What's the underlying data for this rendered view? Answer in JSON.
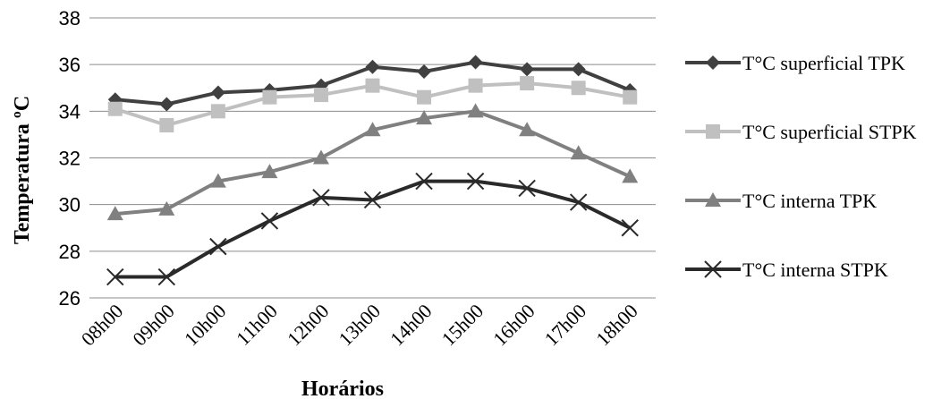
{
  "chart_data": {
    "type": "line",
    "ylabel": "Temperatura ºC",
    "xlabel": "Horários",
    "ylim": [
      26,
      38
    ],
    "yticks": [
      "26",
      "28",
      "30",
      "32",
      "34",
      "36",
      "38"
    ],
    "grid": true,
    "legend_position": "right",
    "categories": [
      "08h00",
      "09h00",
      "10h00",
      "11h00",
      "12h00",
      "13h00",
      "14h00",
      "15h00",
      "16h00",
      "17h00",
      "18h00"
    ],
    "series": [
      {
        "name": "T°C superficial TPK",
        "marker": "diamond",
        "color": "#404040",
        "values": [
          34.5,
          34.3,
          34.8,
          34.9,
          35.1,
          35.9,
          35.7,
          36.1,
          35.8,
          35.8,
          34.9
        ]
      },
      {
        "name": "T°C superficial STPK",
        "marker": "square",
        "color": "#c0c0c0",
        "values": [
          34.1,
          33.4,
          34.0,
          34.6,
          34.7,
          35.1,
          34.6,
          35.1,
          35.2,
          35.0,
          34.6
        ]
      },
      {
        "name": "T°C interna TPK",
        "marker": "triangle",
        "color": "#808080",
        "values": [
          29.6,
          29.8,
          31.0,
          31.4,
          32.0,
          33.2,
          33.7,
          34.0,
          33.2,
          32.2,
          31.2
        ]
      },
      {
        "name": "T°C interna STPK",
        "marker": "x",
        "color": "#2a2a2a",
        "values": [
          26.9,
          26.9,
          28.2,
          29.3,
          30.3,
          30.2,
          31.0,
          31.0,
          30.7,
          30.1,
          29.0
        ]
      }
    ]
  }
}
